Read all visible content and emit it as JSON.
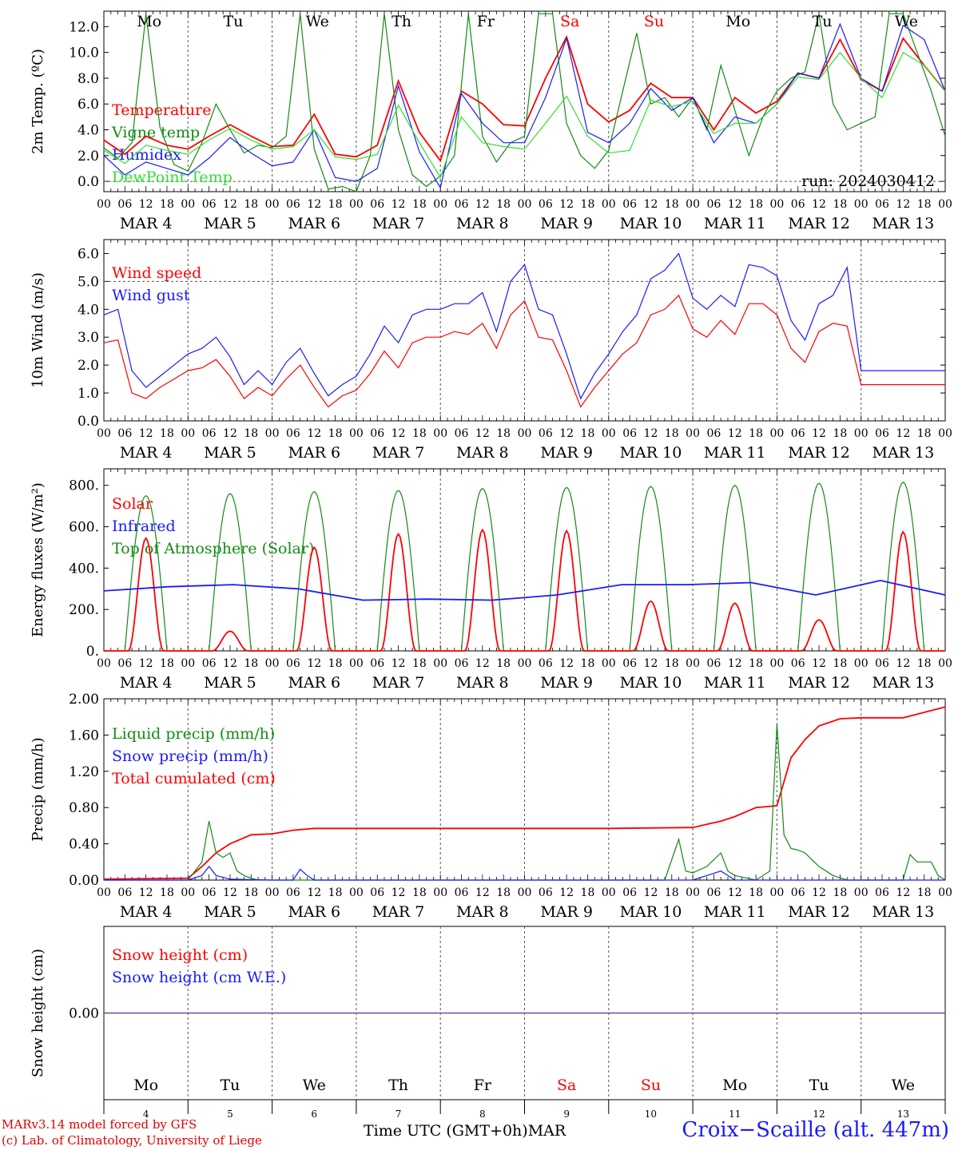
{
  "days": {
    "weekday_labels": [
      "Mo",
      "Tu",
      "We",
      "Th",
      "Fr",
      "Sa",
      "Su",
      "Mo",
      "Tu",
      "We"
    ],
    "weekend_flags": [
      false,
      false,
      false,
      false,
      false,
      true,
      true,
      false,
      false,
      false
    ],
    "date_labels": [
      "MAR  4",
      "MAR  5",
      "MAR  6",
      "MAR  7",
      "MAR  8",
      "MAR  9",
      "MAR 10",
      "MAR 11",
      "MAR 12",
      "MAR 13"
    ],
    "day_numbers": [
      "4",
      "5",
      "6",
      "7",
      "8",
      "9",
      "10",
      "11",
      "12",
      "13"
    ],
    "hour_ticks": [
      "00",
      "06",
      "12",
      "18"
    ],
    "final_hour": "00"
  },
  "colors": {
    "red": "#ff0000",
    "darkgreen": "#138a13",
    "blue": "#1a1aff",
    "lightgreen": "#33dd33",
    "purple": "#7a3a9a",
    "weekend_red": "#ff0000"
  },
  "footer": {
    "model": "MARv3.14 model forced by GFS",
    "lab": "(c) Lab. of Climatology, University of Liege",
    "time_axis": "Time UTC (GMT+0h)MAR",
    "station": "Croix−Scaille (alt. 447m)"
  },
  "chart_data": [
    {
      "type": "line",
      "ylabel": "2m Temp. (ºC)",
      "ylim": [
        -0.8,
        13.2
      ],
      "yticks": [
        0,
        2,
        4,
        6,
        8,
        10,
        12
      ],
      "ytick_labels": [
        "0.0",
        "2.0",
        "4.0",
        "6.0",
        "8.0",
        "10.0",
        "12.0"
      ],
      "dashed_y": 0,
      "legend": [
        "Temperature",
        "Vigne temp",
        "Humidex",
        "DewPoint Temp"
      ],
      "annotation": "run: 2024030412",
      "series": [
        {
          "name": "Temperature",
          "color": "#ff0000",
          "x": [
            0,
            6,
            12,
            18,
            24,
            30,
            36,
            42,
            48,
            54,
            60,
            66,
            72,
            78,
            84,
            90,
            96,
            102,
            108,
            114,
            120,
            126,
            132,
            138,
            144,
            150,
            156,
            162,
            168,
            174,
            180,
            186,
            192,
            198,
            204,
            210,
            216,
            222,
            228,
            234,
            240
          ],
          "y": [
            3.2,
            2.1,
            3.5,
            2.8,
            2.5,
            3.5,
            4.4,
            3.5,
            2.7,
            2.8,
            5.2,
            2.1,
            1.9,
            2.8,
            7.8,
            3.8,
            1.6,
            7.0,
            6.0,
            4.4,
            4.3,
            8.0,
            11.2,
            6.0,
            4.6,
            5.5,
            7.6,
            6.5,
            6.5,
            4.0,
            6.5,
            5.3,
            6.2,
            8.4,
            8.0,
            11.0,
            7.9,
            7.0,
            11.1,
            9.0,
            7.0
          ]
        },
        {
          "name": "Vigne temp",
          "color": "#138a13",
          "x": [
            0,
            4,
            8,
            12,
            16,
            20,
            24,
            28,
            32,
            36,
            40,
            44,
            48,
            52,
            56,
            60,
            64,
            68,
            72,
            76,
            80,
            84,
            88,
            92,
            96,
            100,
            104,
            108,
            112,
            116,
            120,
            124,
            128,
            132,
            136,
            140,
            144,
            148,
            152,
            156,
            160,
            164,
            168,
            172,
            176,
            180,
            184,
            188,
            192,
            196,
            200,
            204,
            208,
            212,
            216,
            220,
            224,
            228,
            232,
            236,
            240
          ],
          "y": [
            2.6,
            1.8,
            3.0,
            13.0,
            4.2,
            1.3,
            0.8,
            3.0,
            6.0,
            4.0,
            2.2,
            2.8,
            2.6,
            3.5,
            13.0,
            2.5,
            -0.6,
            -0.4,
            -0.8,
            2.0,
            13.0,
            4.0,
            0.5,
            -0.4,
            0.4,
            2.0,
            13.0,
            3.5,
            1.5,
            3.0,
            3.5,
            13.0,
            13.0,
            4.5,
            2.0,
            1.0,
            2.4,
            7.0,
            11.5,
            6.0,
            6.5,
            5.0,
            6.5,
            4.0,
            9.0,
            5.5,
            2.0,
            5.0,
            7.0,
            8.0,
            8.5,
            13.0,
            6.0,
            4.0,
            4.5,
            5.0,
            13.0,
            13.0,
            10.0,
            7.0,
            3.5
          ]
        },
        {
          "name": "Humidex",
          "color": "#1a1aff",
          "x": [
            0,
            6,
            12,
            18,
            24,
            30,
            36,
            42,
            48,
            54,
            60,
            66,
            72,
            78,
            84,
            90,
            96,
            102,
            108,
            114,
            120,
            126,
            132,
            138,
            144,
            150,
            156,
            162,
            168,
            174,
            180,
            186,
            192,
            198,
            204,
            210,
            216,
            222,
            228,
            234,
            240
          ],
          "y": [
            2.0,
            0.5,
            1.5,
            1.0,
            0.5,
            1.8,
            3.4,
            2.2,
            1.2,
            1.5,
            4.0,
            0.3,
            0.0,
            1.0,
            7.4,
            2.3,
            -0.5,
            6.8,
            4.5,
            3.0,
            3.0,
            6.5,
            11.1,
            3.8,
            3.0,
            4.5,
            7.2,
            5.5,
            6.5,
            3.0,
            5.0,
            4.5,
            6.0,
            8.4,
            8.0,
            12.2,
            8.0,
            7.0,
            12.1,
            11.0,
            7.0
          ]
        },
        {
          "name": "DewPoint Temp",
          "color": "#33dd33",
          "x": [
            0,
            6,
            12,
            18,
            24,
            30,
            36,
            42,
            48,
            54,
            60,
            66,
            72,
            78,
            84,
            90,
            96,
            102,
            108,
            114,
            120,
            126,
            132,
            138,
            144,
            150,
            156,
            162,
            168,
            174,
            180,
            186,
            192,
            198,
            204,
            210,
            216,
            222,
            228,
            234,
            240
          ],
          "y": [
            2.4,
            1.4,
            2.8,
            2.4,
            2.1,
            3.2,
            4.1,
            3.2,
            2.5,
            2.7,
            4.0,
            1.9,
            1.7,
            2.1,
            5.9,
            3.0,
            0.3,
            5.0,
            3.0,
            2.7,
            2.5,
            4.5,
            6.6,
            3.5,
            2.2,
            2.4,
            6.3,
            5.8,
            6.2,
            3.7,
            4.5,
            4.5,
            6.0,
            8.1,
            7.9,
            10.0,
            8.0,
            6.5,
            10.0,
            9.0,
            7.0
          ]
        }
      ]
    },
    {
      "type": "line",
      "ylabel": "10m Wind (m/s)",
      "ylim": [
        0,
        6.5
      ],
      "yticks": [
        0,
        1,
        2,
        3,
        4,
        5,
        6
      ],
      "ytick_labels": [
        "0.0",
        "1.0",
        "2.0",
        "3.0",
        "4.0",
        "5.0",
        "6.0"
      ],
      "dashed_y": 5,
      "legend": [
        "Wind speed",
        "Wind gust"
      ],
      "series": [
        {
          "name": "Wind speed",
          "color": "#ff0000",
          "x": [
            0,
            4,
            8,
            12,
            16,
            20,
            24,
            28,
            32,
            36,
            40,
            44,
            48,
            52,
            56,
            60,
            64,
            68,
            72,
            76,
            80,
            84,
            88,
            92,
            96,
            100,
            104,
            108,
            112,
            116,
            120,
            124,
            128,
            132,
            136,
            140,
            144,
            148,
            152,
            156,
            160,
            164,
            168,
            172,
            176,
            180,
            184,
            188,
            192,
            196,
            200,
            204,
            208,
            212,
            216,
            220,
            224,
            228,
            232,
            236,
            240
          ],
          "y": [
            2.8,
            2.9,
            1.0,
            0.8,
            1.2,
            1.5,
            1.8,
            1.9,
            2.2,
            1.6,
            0.8,
            1.2,
            0.9,
            1.5,
            2.0,
            1.2,
            0.5,
            0.9,
            1.1,
            1.7,
            2.5,
            1.9,
            2.8,
            3.0,
            3.0,
            3.2,
            3.1,
            3.5,
            2.6,
            3.8,
            4.3,
            3.0,
            2.9,
            1.8,
            0.5,
            1.2,
            1.8,
            2.4,
            2.8,
            3.8,
            4.0,
            4.5,
            3.3,
            3.0,
            3.6,
            3.1,
            4.2,
            4.2,
            3.8,
            2.6,
            2.1,
            3.2,
            3.5,
            3.4,
            1.3,
            1.3,
            1.3,
            1.3,
            1.3,
            1.3,
            1.3
          ]
        },
        {
          "name": "Wind gust",
          "color": "#1a1aff",
          "x": [
            0,
            4,
            8,
            12,
            16,
            20,
            24,
            28,
            32,
            36,
            40,
            44,
            48,
            52,
            56,
            60,
            64,
            68,
            72,
            76,
            80,
            84,
            88,
            92,
            96,
            100,
            104,
            108,
            112,
            116,
            120,
            124,
            128,
            132,
            136,
            140,
            144,
            148,
            152,
            156,
            160,
            164,
            168,
            172,
            176,
            180,
            184,
            188,
            192,
            196,
            200,
            204,
            208,
            212,
            216,
            220,
            224,
            228,
            232,
            236,
            240
          ],
          "y": [
            3.8,
            4.0,
            1.8,
            1.2,
            1.6,
            2.0,
            2.4,
            2.6,
            3.0,
            2.3,
            1.3,
            1.8,
            1.3,
            2.1,
            2.6,
            1.7,
            0.9,
            1.3,
            1.6,
            2.4,
            3.4,
            2.8,
            3.8,
            4.0,
            4.0,
            4.2,
            4.2,
            4.6,
            3.2,
            5.0,
            5.6,
            4.0,
            3.8,
            2.4,
            0.8,
            1.7,
            2.4,
            3.2,
            3.8,
            5.1,
            5.4,
            6.0,
            4.4,
            4.0,
            4.5,
            4.1,
            5.6,
            5.5,
            5.2,
            3.6,
            2.9,
            4.2,
            4.5,
            5.5,
            1.8,
            1.8,
            1.8,
            1.8,
            1.8,
            1.8,
            1.8
          ]
        }
      ]
    },
    {
      "type": "line",
      "ylabel": "Energy fluxes (W/m²)",
      "ylim": [
        0,
        880
      ],
      "yticks": [
        0,
        200,
        400,
        600,
        800
      ],
      "ytick_labels": [
        "0.",
        "200.",
        "400.",
        "600.",
        "800."
      ],
      "legend": [
        "Solar",
        "Infrared",
        "Top of Atmosphere (Solar)"
      ],
      "toa_peaks": [
        750,
        760,
        770,
        775,
        785,
        790,
        795,
        800,
        810,
        815
      ],
      "solar_peaks": [
        545,
        95,
        500,
        565,
        585,
        580,
        240,
        230,
        150,
        575
      ],
      "infrared_values": [
        290,
        310,
        320,
        300,
        245,
        250,
        245,
        270,
        320,
        320,
        330,
        270,
        340,
        270
      ]
    },
    {
      "type": "line",
      "ylabel": "Precip (mm/h)",
      "ylim": [
        0,
        2.0
      ],
      "yticks": [
        0,
        0.4,
        0.8,
        1.2,
        1.6,
        2.0
      ],
      "ytick_labels": [
        "0.00",
        "0.40",
        "0.80",
        "1.20",
        "1.60",
        "2.00"
      ],
      "legend": [
        "Liquid precip (mm/h)",
        "Snow precip (mm/h)",
        "Total cumulated (cm)"
      ],
      "series": [
        {
          "name": "Total cumulated (cm)",
          "color": "#ff0000",
          "x": [
            0,
            24,
            28,
            32,
            36,
            42,
            48,
            54,
            60,
            72,
            96,
            120,
            144,
            168,
            176,
            180,
            186,
            192,
            196,
            200,
            204,
            210,
            216,
            222,
            228,
            234,
            240
          ],
          "y": [
            0.01,
            0.02,
            0.15,
            0.3,
            0.4,
            0.5,
            0.51,
            0.55,
            0.57,
            0.57,
            0.57,
            0.57,
            0.57,
            0.58,
            0.65,
            0.7,
            0.8,
            0.82,
            1.35,
            1.55,
            1.7,
            1.78,
            1.79,
            1.79,
            1.79,
            1.85,
            1.91
          ]
        },
        {
          "name": "Liquid precip (mm/h)",
          "color": "#138a13",
          "x": [
            0,
            24,
            28,
            30,
            32,
            34,
            36,
            38,
            40,
            42,
            44,
            48,
            54,
            60,
            96,
            150,
            160,
            164,
            166,
            168,
            172,
            176,
            178,
            180,
            186,
            190,
            192,
            194,
            196,
            198,
            200,
            204,
            208,
            212,
            216,
            228,
            230,
            232,
            234,
            236,
            238,
            240
          ],
          "y": [
            0,
            0,
            0.2,
            0.65,
            0.3,
            0.25,
            0.3,
            0.1,
            0.05,
            0.02,
            0,
            0,
            0,
            0,
            0,
            0,
            0,
            0.45,
            0.1,
            0.08,
            0.15,
            0.3,
            0.1,
            0.05,
            0,
            0.1,
            1.72,
            0.5,
            0.35,
            0.33,
            0.3,
            0.15,
            0.05,
            0,
            0,
            0,
            0.28,
            0.2,
            0.2,
            0.2,
            0.05,
            0
          ]
        },
        {
          "name": "Snow precip (mm/h)",
          "color": "#1a1aff",
          "x": [
            0,
            24,
            28,
            30,
            32,
            34,
            36,
            48,
            54,
            56,
            58,
            60,
            72,
            96,
            168,
            176,
            178,
            180,
            186,
            192,
            240
          ],
          "y": [
            0,
            0,
            0.05,
            0.15,
            0.05,
            0.03,
            0.01,
            0,
            0,
            0.12,
            0.05,
            0,
            0,
            0,
            0,
            0.1,
            0.05,
            0,
            0,
            0,
            0
          ]
        }
      ]
    },
    {
      "type": "line",
      "ylabel": "Snow height (cm)",
      "ylim": [
        -1,
        1
      ],
      "yticks": [
        0
      ],
      "ytick_labels": [
        "0.00"
      ],
      "legend": [
        "Snow height (cm)",
        "Snow height (cm W.E.)"
      ],
      "series": [
        {
          "name": "Snow height (cm)",
          "color": "#ff0000",
          "x": [
            0,
            240
          ],
          "y": [
            0,
            0
          ]
        },
        {
          "name": "Snow height (cm W.E.)",
          "color": "#1a1aff",
          "x": [
            0,
            240
          ],
          "y": [
            0,
            0
          ]
        }
      ]
    }
  ]
}
